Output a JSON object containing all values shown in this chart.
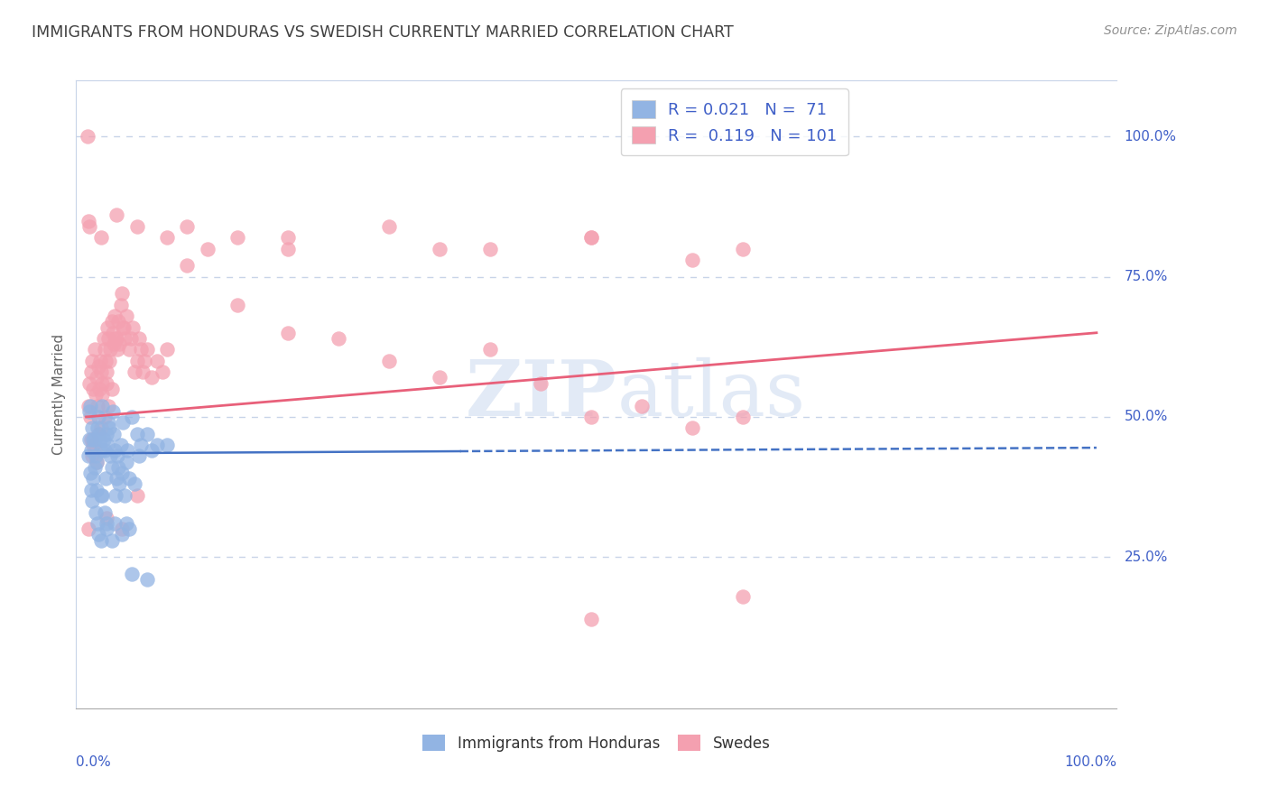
{
  "title": "IMMIGRANTS FROM HONDURAS VS SWEDISH CURRENTLY MARRIED CORRELATION CHART",
  "source": "Source: ZipAtlas.com",
  "ylabel": "Currently Married",
  "legend_label1": "Immigrants from Honduras",
  "legend_label2": "Swedes",
  "R1": "0.021",
  "N1": "71",
  "R2": "0.119",
  "N2": "101",
  "color_blue": "#92b4e3",
  "color_pink": "#f4a0b0",
  "line_blue": "#4472c4",
  "line_pink": "#e8607a",
  "background_color": "#ffffff",
  "grid_color": "#c8d4e8",
  "title_color": "#404040",
  "source_color": "#909090",
  "axis_label_color": "#4060c8",
  "blue_x": [
    0.002,
    0.003,
    0.003,
    0.004,
    0.004,
    0.005,
    0.005,
    0.006,
    0.006,
    0.007,
    0.007,
    0.008,
    0.008,
    0.009,
    0.009,
    0.01,
    0.01,
    0.011,
    0.011,
    0.012,
    0.012,
    0.013,
    0.014,
    0.015,
    0.015,
    0.016,
    0.016,
    0.017,
    0.018,
    0.018,
    0.019,
    0.02,
    0.02,
    0.021,
    0.022,
    0.023,
    0.024,
    0.025,
    0.026,
    0.027,
    0.028,
    0.029,
    0.03,
    0.031,
    0.032,
    0.033,
    0.034,
    0.035,
    0.036,
    0.038,
    0.04,
    0.041,
    0.042,
    0.045,
    0.048,
    0.05,
    0.052,
    0.054,
    0.06,
    0.065,
    0.07,
    0.015,
    0.02,
    0.025,
    0.028,
    0.035,
    0.04,
    0.042,
    0.045,
    0.06,
    0.08
  ],
  "blue_y": [
    0.43,
    0.51,
    0.46,
    0.52,
    0.4,
    0.44,
    0.37,
    0.48,
    0.35,
    0.46,
    0.39,
    0.46,
    0.41,
    0.43,
    0.33,
    0.42,
    0.37,
    0.48,
    0.31,
    0.5,
    0.29,
    0.47,
    0.46,
    0.44,
    0.36,
    0.52,
    0.36,
    0.46,
    0.44,
    0.33,
    0.39,
    0.47,
    0.31,
    0.45,
    0.49,
    0.48,
    0.43,
    0.41,
    0.51,
    0.47,
    0.44,
    0.36,
    0.39,
    0.43,
    0.41,
    0.38,
    0.45,
    0.4,
    0.49,
    0.36,
    0.42,
    0.44,
    0.39,
    0.5,
    0.38,
    0.47,
    0.43,
    0.45,
    0.47,
    0.44,
    0.45,
    0.28,
    0.3,
    0.28,
    0.31,
    0.29,
    0.31,
    0.3,
    0.22,
    0.21,
    0.45
  ],
  "pink_x": [
    0.002,
    0.003,
    0.004,
    0.005,
    0.005,
    0.006,
    0.006,
    0.007,
    0.007,
    0.008,
    0.008,
    0.009,
    0.01,
    0.01,
    0.011,
    0.012,
    0.012,
    0.013,
    0.014,
    0.015,
    0.015,
    0.016,
    0.016,
    0.017,
    0.018,
    0.018,
    0.019,
    0.02,
    0.02,
    0.021,
    0.022,
    0.022,
    0.023,
    0.024,
    0.025,
    0.025,
    0.026,
    0.027,
    0.028,
    0.029,
    0.03,
    0.031,
    0.032,
    0.033,
    0.034,
    0.035,
    0.036,
    0.037,
    0.038,
    0.04,
    0.042,
    0.044,
    0.046,
    0.048,
    0.05,
    0.052,
    0.054,
    0.056,
    0.058,
    0.06,
    0.065,
    0.07,
    0.075,
    0.08,
    0.1,
    0.15,
    0.2,
    0.25,
    0.3,
    0.35,
    0.4,
    0.45,
    0.5,
    0.55,
    0.6,
    0.65,
    0.1,
    0.15,
    0.2,
    0.3,
    0.4,
    0.5,
    0.6,
    0.002,
    0.02,
    0.035,
    0.05,
    0.5,
    0.65,
    0.002,
    0.003,
    0.015,
    0.03,
    0.05,
    0.08,
    0.12,
    0.2,
    0.35,
    0.5,
    0.65,
    0.001
  ],
  "pink_y": [
    0.52,
    0.56,
    0.5,
    0.58,
    0.46,
    0.6,
    0.43,
    0.55,
    0.45,
    0.62,
    0.44,
    0.54,
    0.57,
    0.42,
    0.52,
    0.59,
    0.47,
    0.55,
    0.6,
    0.58,
    0.48,
    0.56,
    0.54,
    0.64,
    0.62,
    0.5,
    0.6,
    0.58,
    0.56,
    0.66,
    0.64,
    0.52,
    0.6,
    0.62,
    0.67,
    0.55,
    0.65,
    0.63,
    0.68,
    0.64,
    0.64,
    0.62,
    0.67,
    0.63,
    0.7,
    0.72,
    0.66,
    0.66,
    0.64,
    0.68,
    0.62,
    0.64,
    0.66,
    0.58,
    0.6,
    0.64,
    0.62,
    0.58,
    0.6,
    0.62,
    0.57,
    0.6,
    0.58,
    0.62,
    0.77,
    0.7,
    0.65,
    0.64,
    0.6,
    0.57,
    0.62,
    0.56,
    0.5,
    0.52,
    0.48,
    0.5,
    0.84,
    0.82,
    0.8,
    0.84,
    0.8,
    0.82,
    0.78,
    0.3,
    0.32,
    0.3,
    0.36,
    0.14,
    0.18,
    0.85,
    0.84,
    0.82,
    0.86,
    0.84,
    0.82,
    0.8,
    0.82,
    0.8,
    0.82,
    0.8,
    1.0
  ]
}
